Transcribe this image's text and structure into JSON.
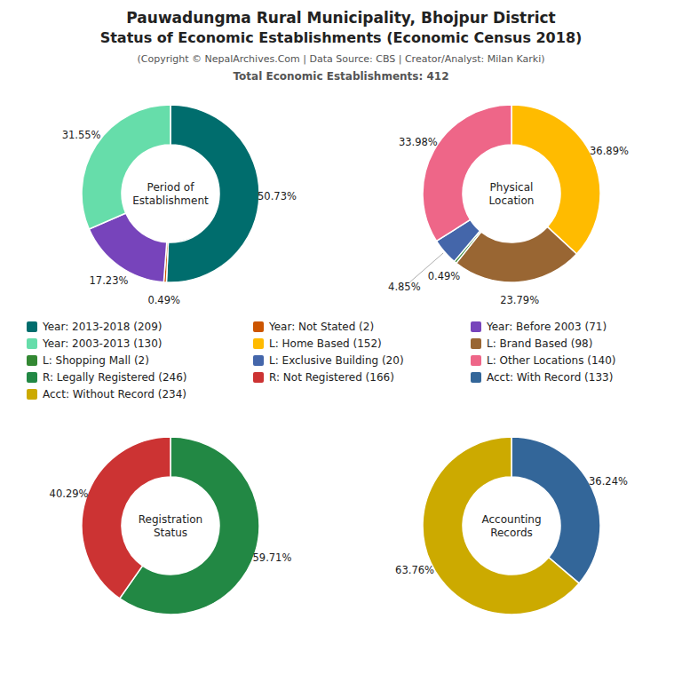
{
  "title": [
    "Pauwadungma Rural Municipality, Bhojpur District",
    "Status of Economic Establishments (Economic Census 2018)"
  ],
  "subtitle": [
    "(Copyright © NepalArchives.Com | Data Source: CBS | Creator/Analyst: Milan Karki)",
    "Total Economic Establishments: 412"
  ],
  "chart_data": [
    {
      "type": "pie",
      "title": "Period of\nEstablishment",
      "categories": [
        "Year: 2013-2018 (209)",
        "Year: Not Stated (2)",
        "Year: Before 2003 (71)",
        "Year: 2003-2013 (130)"
      ],
      "values": [
        50.73,
        0.49,
        17.23,
        31.55
      ],
      "value_labels": [
        "50.73%",
        "0.49%",
        "17.23%",
        "31.55%"
      ],
      "colors": [
        "#006d6d",
        "#cc5500",
        "#7744bb",
        "#66ddaa"
      ],
      "data_labels": true,
      "legend": "center"
    },
    {
      "type": "pie",
      "title": "Physical\nLocation",
      "categories": [
        "L: Home Based (152)",
        "L: Brand Based (98)",
        "L: Shopping Mall (2)",
        "L: Exclusive Building (20)",
        "L: Other Locations (140)"
      ],
      "values": [
        36.89,
        23.79,
        0.49,
        4.85,
        33.98
      ],
      "value_labels": [
        "36.89%",
        "23.79%",
        "0.49%",
        "4.85%",
        "33.98%"
      ],
      "colors": [
        "#ffbb00",
        "#996633",
        "#338833",
        "#4466aa",
        "#ee6688"
      ],
      "data_labels": true,
      "legend": "center"
    },
    {
      "type": "pie",
      "title": "Registration\nStatus",
      "categories": [
        "R: Legally Registered (246)",
        "R: Not Registered (166)"
      ],
      "values": [
        59.71,
        40.29
      ],
      "value_labels": [
        "59.71%",
        "40.29%"
      ],
      "colors": [
        "#228844",
        "#cc3333"
      ],
      "data_labels": true,
      "legend": "center"
    },
    {
      "type": "pie",
      "title": "Accounting\nRecords",
      "categories": [
        "Acct: With Record (133)",
        "Acct: Without Record (234)"
      ],
      "values": [
        36.24,
        63.76
      ],
      "value_labels": [
        "36.24%",
        "63.76%"
      ],
      "colors": [
        "#336699",
        "#ccaa00"
      ],
      "data_labels": true,
      "legend": "center"
    }
  ]
}
